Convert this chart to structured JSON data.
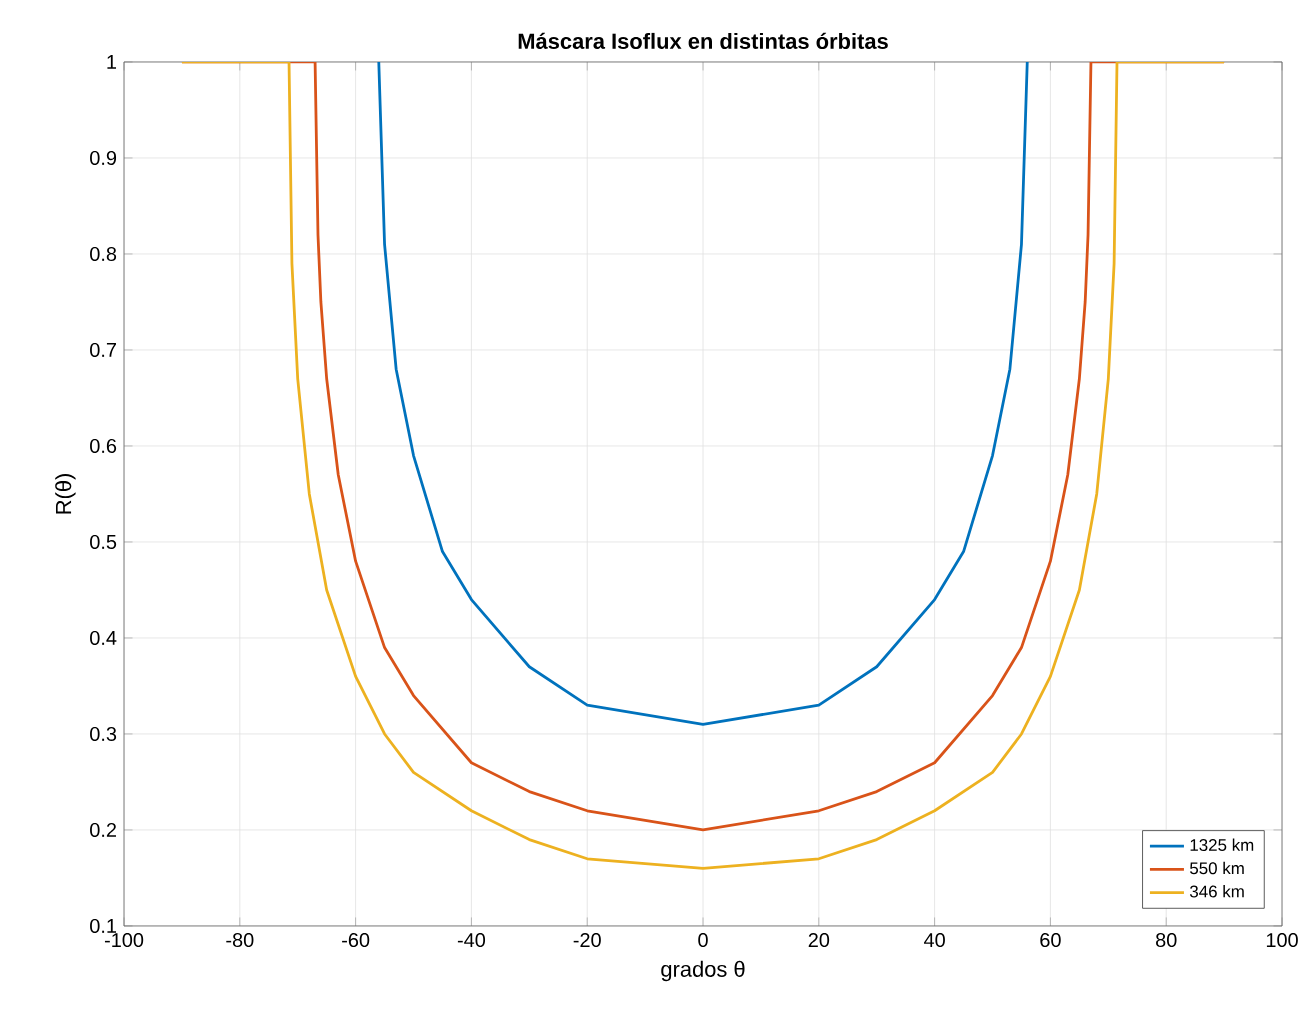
{
  "chart_data": {
    "type": "line",
    "title": "Máscara Isoflux en distintas órbitas",
    "xlabel": "grados θ",
    "ylabel": "R(θ)",
    "xlim": [
      -100,
      100
    ],
    "ylim": [
      0.1,
      1
    ],
    "xticks": [
      -100,
      -80,
      -60,
      -40,
      -20,
      0,
      20,
      40,
      60,
      80,
      100
    ],
    "yticks": [
      0.1,
      0.2,
      0.3,
      0.4,
      0.5,
      0.6,
      0.7,
      0.8,
      0.9,
      1
    ],
    "grid": true,
    "legend": "bottom right",
    "marker": "none",
    "line_style": "solid",
    "series": [
      {
        "name": "1325 km",
        "color": "#0072bd",
        "x": [
          -56,
          -55,
          -53,
          -50,
          -45,
          -40,
          -30,
          -20,
          0,
          20,
          30,
          40,
          45,
          50,
          53,
          55,
          56
        ],
        "values": [
          1,
          0.81,
          0.68,
          0.59,
          0.49,
          0.44,
          0.37,
          0.33,
          0.31,
          0.33,
          0.37,
          0.44,
          0.49,
          0.59,
          0.68,
          0.81,
          1
        ]
      },
      {
        "name": "550 km",
        "color": "#d95319",
        "x": [
          -90,
          -67,
          -66.5,
          -66,
          -65,
          -63,
          -60,
          -55,
          -50,
          -40,
          -30,
          -20,
          0,
          20,
          30,
          40,
          50,
          55,
          60,
          63,
          65,
          66,
          66.5,
          67,
          90
        ],
        "values": [
          1,
          1,
          0.82,
          0.75,
          0.67,
          0.57,
          0.48,
          0.39,
          0.34,
          0.27,
          0.24,
          0.22,
          0.2,
          0.22,
          0.24,
          0.27,
          0.34,
          0.39,
          0.48,
          0.57,
          0.67,
          0.75,
          0.82,
          1,
          1
        ]
      },
      {
        "name": "346 km",
        "color": "#edb120",
        "x": [
          -90,
          -71.5,
          -71,
          -70,
          -68,
          -65,
          -60,
          -55,
          -50,
          -40,
          -30,
          -20,
          0,
          20,
          30,
          40,
          50,
          55,
          60,
          65,
          68,
          70,
          71,
          71.5,
          90
        ],
        "values": [
          1,
          1,
          0.79,
          0.67,
          0.55,
          0.45,
          0.36,
          0.3,
          0.26,
          0.22,
          0.19,
          0.17,
          0.16,
          0.17,
          0.19,
          0.22,
          0.26,
          0.3,
          0.36,
          0.45,
          0.55,
          0.67,
          0.79,
          1,
          1
        ]
      }
    ]
  }
}
